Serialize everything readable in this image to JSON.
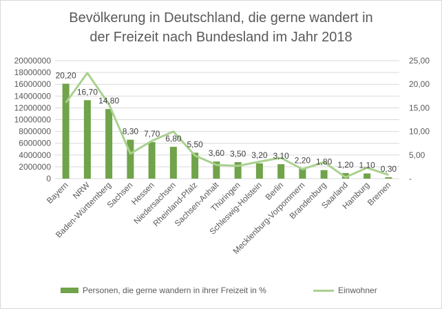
{
  "chart_data": {
    "type": "bar",
    "title_lines": [
      "Bevölkerung  in Deutschland, die gerne wandert in",
      "der Freizeit  nach Bundesland  im Jahr 2018"
    ],
    "categories": [
      "Bayern",
      "NRW",
      "Baden-Württemberg",
      "Sachsen",
      "Hessen",
      "Niedersachsen",
      "Rheinland-Pfalz",
      "Sachsen-Anhalt",
      "Thüringen",
      "Schleswig-Holstein",
      "Berlin",
      "Mecklenburg-Vorpommern",
      "Brandenburg",
      "Saarland",
      "Hamburg",
      "Bremen"
    ],
    "series": [
      {
        "name": "Personen, die gerne wandern in ihrer Freizeit in %",
        "kind": "bar",
        "axis": "left",
        "color": "#70a34a",
        "values": [
          16100000,
          13300000,
          11800000,
          6600000,
          6200000,
          5400000,
          4400000,
          2900000,
          2800000,
          2600000,
          2450000,
          1700000,
          1450000,
          950000,
          880000,
          240000
        ],
        "data_labels": [
          "20,20",
          "16,70",
          "14,80",
          "8,30",
          "7,70",
          "6,80",
          "5,50",
          "3,60",
          "3,50",
          "3,20",
          "3,10",
          "2,20",
          "1,80",
          "1,20",
          "1,10",
          "0,30"
        ]
      },
      {
        "name": "Einwohner",
        "kind": "line",
        "axis": "right",
        "color": "#a9d18e",
        "values": [
          16.1,
          22.4,
          15.8,
          5.3,
          8.0,
          10.0,
          4.9,
          2.9,
          2.7,
          3.6,
          4.4,
          2.0,
          3.5,
          0.3,
          2.3,
          0.8
        ]
      }
    ],
    "y_left": {
      "min": 0,
      "max": 20000000,
      "step": 2000000,
      "tick_labels": [
        "0",
        "2000000",
        "4000000",
        "6000000",
        "8000000",
        "10000000",
        "12000000",
        "14000000",
        "16000000",
        "18000000",
        "20000000"
      ]
    },
    "y_right": {
      "min": 0,
      "max": 25,
      "step": 5,
      "tick_labels": [
        "-",
        "5,00",
        "10,00",
        "15,00",
        "20,00",
        "25,00"
      ]
    },
    "legend_position": "bottom",
    "grid": true
  }
}
